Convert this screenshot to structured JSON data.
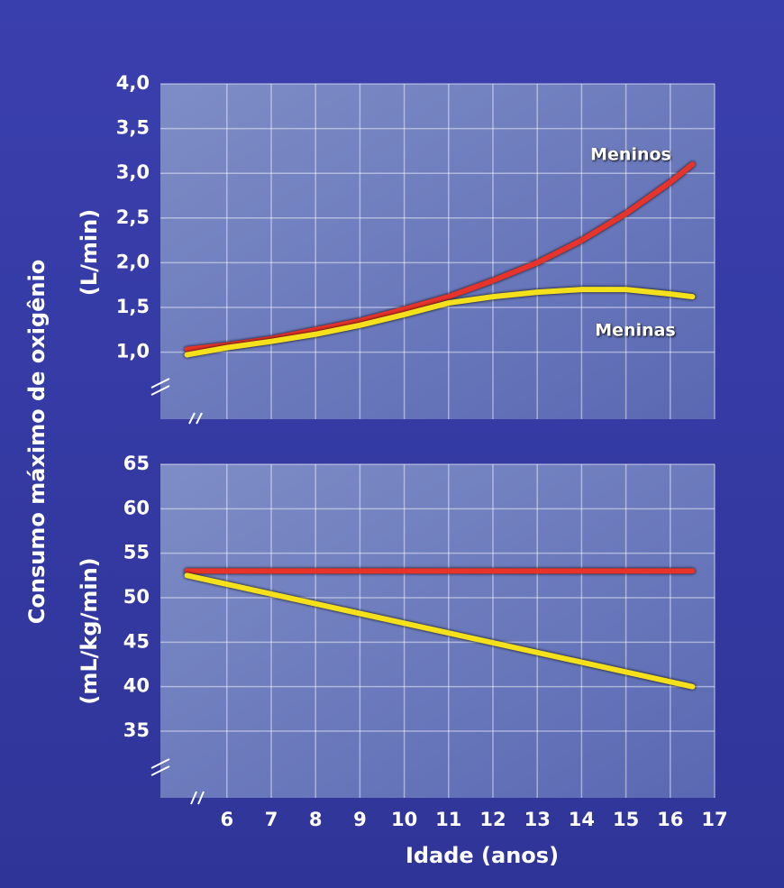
{
  "shared_ylabel": "Consumo máximo de oxigênio",
  "chart_data": [
    {
      "type": "line",
      "ylabel": "(L/min)",
      "x": [
        5.1,
        6,
        7,
        8,
        9,
        10,
        11,
        12,
        13,
        14,
        15,
        16,
        16.5
      ],
      "series": [
        {
          "name": "Meninos",
          "color": "#e8332a",
          "values": [
            1.03,
            1.08,
            1.15,
            1.25,
            1.35,
            1.48,
            1.62,
            1.8,
            2.0,
            2.25,
            2.55,
            2.9,
            3.1
          ]
        },
        {
          "name": "Meninas",
          "color": "#f4e11c",
          "values": [
            0.97,
            1.05,
            1.12,
            1.2,
            1.3,
            1.42,
            1.55,
            1.62,
            1.67,
            1.7,
            1.7,
            1.65,
            1.62
          ]
        }
      ],
      "xlim": [
        4.5,
        17
      ],
      "ylim": [
        0.25,
        4.0
      ],
      "xticks": [
        6,
        7,
        8,
        9,
        10,
        11,
        12,
        13,
        14,
        15,
        16,
        17
      ],
      "xtick_labels": false,
      "yticks": [
        {
          "value": 1,
          "label": "1,0"
        },
        {
          "value": 1.5,
          "label": "1,5"
        },
        {
          "value": 2,
          "label": "2,0"
        },
        {
          "value": 2.5,
          "label": "2,5"
        },
        {
          "value": 3,
          "label": "3,0"
        },
        {
          "value": 3.5,
          "label": "3,5"
        },
        {
          "value": 4,
          "label": "4,0"
        }
      ],
      "grid": true
    },
    {
      "type": "line",
      "ylabel": "(mL/kg/min)",
      "xlabel": "Idade (anos)",
      "x": [
        5.1,
        16.5
      ],
      "series": [
        {
          "color": "#e8332a",
          "values": [
            53,
            53
          ]
        },
        {
          "color": "#f4e11c",
          "values": [
            52.5,
            40
          ]
        }
      ],
      "xlim": [
        4.5,
        17
      ],
      "ylim": [
        27.5,
        65
      ],
      "xticks": [
        6,
        7,
        8,
        9,
        10,
        11,
        12,
        13,
        14,
        15,
        16,
        17
      ],
      "xtick_labels": true,
      "yticks": [
        35,
        40,
        45,
        50,
        55,
        60,
        65
      ],
      "grid": true
    }
  ]
}
